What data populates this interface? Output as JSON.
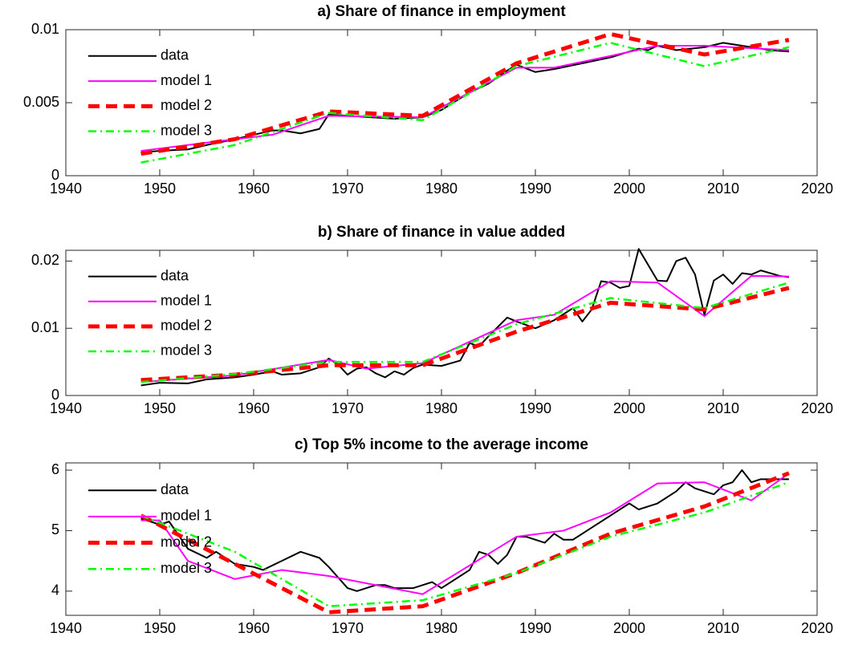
{
  "chart_data": [
    {
      "type": "line",
      "title": "a) Share of finance in employment",
      "xlim": [
        1940,
        2020
      ],
      "xticks": [
        1940,
        1950,
        1960,
        1970,
        1980,
        1990,
        2000,
        2010,
        2020
      ],
      "ylim": [
        0,
        0.01
      ],
      "yticks": [
        0,
        0.005,
        0.01
      ],
      "grid": false,
      "legend": "upper left",
      "series": [
        {
          "name": "data",
          "color": "#000000",
          "linestyle": "solid",
          "x": [
            1948,
            1950,
            1953,
            1955,
            1958,
            1960,
            1962,
            1963,
            1965,
            1967,
            1968,
            1970,
            1975,
            1978,
            1980,
            1983,
            1985,
            1987,
            1988,
            1990,
            1992,
            1995,
            1998,
            2000,
            2001,
            2002,
            2003,
            2005,
            2008,
            2010,
            2012,
            2015,
            2017
          ],
          "values": [
            0.0016,
            0.0017,
            0.0018,
            0.0021,
            0.0025,
            0.0028,
            0.0031,
            0.0031,
            0.0029,
            0.0032,
            0.0042,
            0.0041,
            0.0039,
            0.004,
            0.0045,
            0.0057,
            0.0063,
            0.0072,
            0.0076,
            0.0071,
            0.0073,
            0.0077,
            0.0081,
            0.0085,
            0.0087,
            0.0086,
            0.0089,
            0.0086,
            0.0088,
            0.0091,
            0.0089,
            0.0086,
            0.0085
          ]
        },
        {
          "name": "model 1",
          "color": "#ff00ff",
          "linestyle": "solid",
          "x": [
            1948,
            1958,
            1962,
            1968,
            1978,
            1988,
            1992,
            1998,
            2003,
            2008,
            2017
          ],
          "values": [
            0.0017,
            0.0025,
            0.0028,
            0.0041,
            0.004,
            0.0074,
            0.0074,
            0.0082,
            0.0089,
            0.0089,
            0.0086
          ]
        },
        {
          "name": "model 2",
          "color": "#ff0000",
          "linestyle": "dashed",
          "x": [
            1948,
            1958,
            1968,
            1978,
            1988,
            1998,
            2008,
            2017
          ],
          "values": [
            0.0015,
            0.0025,
            0.0044,
            0.0041,
            0.0077,
            0.0097,
            0.0083,
            0.0093
          ]
        },
        {
          "name": "model 3",
          "color": "#00ff00",
          "linestyle": "dashdot",
          "x": [
            1948,
            1958,
            1968,
            1978,
            1988,
            1998,
            2008,
            2017
          ],
          "values": [
            0.0009,
            0.0021,
            0.0043,
            0.0038,
            0.0075,
            0.0091,
            0.0075,
            0.0088
          ]
        }
      ]
    },
    {
      "type": "line",
      "title": "b) Share of finance in value added",
      "xlim": [
        1940,
        2020
      ],
      "xticks": [
        1940,
        1950,
        1960,
        1970,
        1980,
        1990,
        2000,
        2010,
        2020
      ],
      "ylim": [
        0,
        0.0216
      ],
      "yticks": [
        0,
        0.01,
        0.02
      ],
      "grid": false,
      "legend": "upper left",
      "series": [
        {
          "name": "data",
          "color": "#000000",
          "linestyle": "solid",
          "x": [
            1948,
            1950,
            1953,
            1955,
            1958,
            1960,
            1962,
            1963,
            1965,
            1967,
            1968,
            1969,
            1970,
            1971,
            1972,
            1973,
            1974,
            1975,
            1976,
            1977,
            1978,
            1980,
            1982,
            1983,
            1984,
            1985,
            1987,
            1988,
            1990,
            1992,
            1994,
            1995,
            1996,
            1997,
            1998,
            1999,
            2000,
            2001,
            2003,
            2004,
            2005,
            2006,
            2007,
            2008,
            2009,
            2010,
            2011,
            2012,
            2013,
            2014,
            2016,
            2017
          ],
          "values": [
            0.0015,
            0.0019,
            0.0018,
            0.0024,
            0.0027,
            0.0031,
            0.0036,
            0.0031,
            0.0033,
            0.0042,
            0.0055,
            0.0046,
            0.0031,
            0.004,
            0.0042,
            0.0033,
            0.0027,
            0.0036,
            0.0031,
            0.0041,
            0.0046,
            0.0044,
            0.0052,
            0.0078,
            0.0073,
            0.0088,
            0.0116,
            0.011,
            0.01,
            0.0112,
            0.013,
            0.011,
            0.0128,
            0.017,
            0.0168,
            0.016,
            0.0163,
            0.0218,
            0.0171,
            0.017,
            0.02,
            0.0205,
            0.018,
            0.012,
            0.0171,
            0.018,
            0.0166,
            0.0182,
            0.018,
            0.0186,
            0.0178,
            0.0176
          ]
        },
        {
          "name": "model 1",
          "color": "#ff00ff",
          "linestyle": "solid",
          "x": [
            1948,
            1958,
            1968,
            1972,
            1978,
            1988,
            1992,
            1998,
            2003,
            2008,
            2013,
            2017
          ],
          "values": [
            0.002,
            0.003,
            0.0053,
            0.004,
            0.0048,
            0.0112,
            0.012,
            0.017,
            0.0168,
            0.0118,
            0.0178,
            0.0177
          ]
        },
        {
          "name": "model 2",
          "color": "#ff0000",
          "linestyle": "dashed",
          "x": [
            1948,
            1958,
            1968,
            1978,
            1988,
            1998,
            2008,
            2017
          ],
          "values": [
            0.0023,
            0.0031,
            0.0045,
            0.0045,
            0.0095,
            0.0138,
            0.0128,
            0.016
          ]
        },
        {
          "name": "model 3",
          "color": "#00ff00",
          "linestyle": "dashdot",
          "x": [
            1948,
            1958,
            1968,
            1978,
            1988,
            1998,
            2008,
            2017
          ],
          "values": [
            0.002,
            0.0032,
            0.005,
            0.005,
            0.0106,
            0.0145,
            0.013,
            0.0168
          ]
        }
      ]
    },
    {
      "type": "line",
      "title": "c) Top 5% income to the average income",
      "xlim": [
        1940,
        2020
      ],
      "xticks": [
        1940,
        1950,
        1960,
        1970,
        1980,
        1990,
        2000,
        2010,
        2020
      ],
      "ylim": [
        3.6,
        6.12
      ],
      "yticks": [
        4,
        5,
        6
      ],
      "grid": false,
      "legend": "upper left",
      "series": [
        {
          "name": "data",
          "color": "#000000",
          "linestyle": "solid",
          "x": [
            1948,
            1950,
            1951,
            1953,
            1955,
            1956,
            1958,
            1960,
            1961,
            1963,
            1965,
            1967,
            1968,
            1970,
            1971,
            1973,
            1974,
            1975,
            1977,
            1978,
            1979,
            1980,
            1982,
            1983,
            1984,
            1985,
            1986,
            1987,
            1988,
            1989,
            1991,
            1992,
            1993,
            1994,
            1996,
            1998,
            2000,
            2001,
            2003,
            2005,
            2006,
            2007,
            2009,
            2010,
            2011,
            2012,
            2013,
            2014,
            2017
          ],
          "values": [
            5.2,
            5.1,
            5.15,
            4.7,
            4.55,
            4.65,
            4.45,
            4.4,
            4.35,
            4.5,
            4.65,
            4.55,
            4.4,
            4.05,
            4.0,
            4.1,
            4.1,
            4.05,
            4.05,
            4.1,
            4.15,
            4.05,
            4.25,
            4.35,
            4.65,
            4.6,
            4.45,
            4.6,
            4.9,
            4.9,
            4.8,
            4.95,
            4.85,
            4.85,
            5.05,
            5.25,
            5.45,
            5.35,
            5.45,
            5.65,
            5.8,
            5.7,
            5.6,
            5.75,
            5.8,
            6.0,
            5.8,
            5.85,
            5.85
          ]
        },
        {
          "name": "model 1",
          "color": "#ff00ff",
          "linestyle": "solid",
          "x": [
            1948,
            1950,
            1953,
            1958,
            1963,
            1968,
            1978,
            1988,
            1993,
            1998,
            2003,
            2008,
            2013,
            2017
          ],
          "values": [
            5.17,
            5.17,
            4.5,
            4.2,
            4.35,
            4.25,
            3.95,
            4.9,
            5.0,
            5.3,
            5.78,
            5.8,
            5.5,
            5.95
          ]
        },
        {
          "name": "model 2",
          "color": "#ff0000",
          "linestyle": "dashed",
          "x": [
            1948,
            1958,
            1968,
            1978,
            1988,
            1998,
            2008,
            2017
          ],
          "values": [
            5.25,
            4.45,
            3.65,
            3.75,
            4.3,
            4.95,
            5.4,
            5.95
          ]
        },
        {
          "name": "model 3",
          "color": "#00ff00",
          "linestyle": "dashdot",
          "x": [
            1948,
            1958,
            1968,
            1978,
            1988,
            1998,
            2008,
            2017
          ],
          "values": [
            5.25,
            4.65,
            3.75,
            3.85,
            4.3,
            4.9,
            5.3,
            5.8
          ]
        }
      ]
    }
  ]
}
